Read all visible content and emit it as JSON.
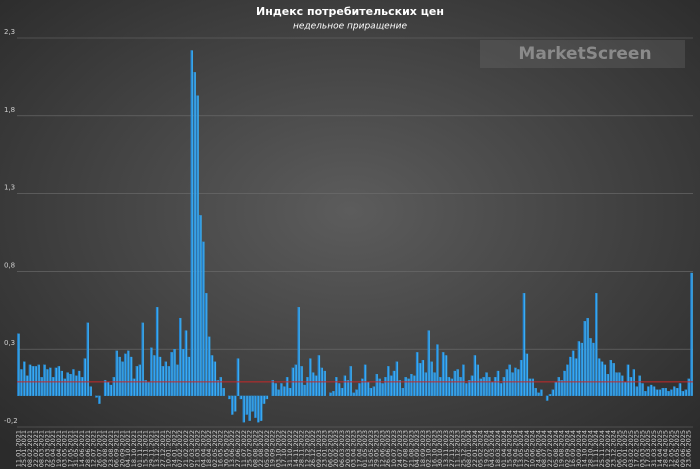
{
  "chart_data": {
    "type": "bar",
    "title": "Индекс потребительских цен",
    "subtitle": "недельное приращение",
    "annotation": "MarketScreen",
    "color": "#2aa6f0",
    "reference_line": {
      "value": 0.09,
      "color": "#c62828"
    },
    "grid": true,
    "ylim": [
      -0.2,
      2.3
    ],
    "yticks": [
      {
        "value": -0.2,
        "label": "-0,2"
      },
      {
        "value": 0.3,
        "label": "0,3"
      },
      {
        "value": 0.8,
        "label": "0,8"
      },
      {
        "value": 1.3,
        "label": "1,3"
      },
      {
        "value": 1.8,
        "label": "1,8"
      },
      {
        "value": 2.3,
        "label": "2,3"
      }
    ],
    "categories": [
      "11.01.2021",
      null,
      "25.01.2021",
      null,
      "08.02.2021",
      null,
      "22.02.2021",
      null,
      "08.03.2021",
      null,
      "22.03.2021",
      null,
      "05.04.2021",
      null,
      "19.04.2021",
      null,
      "03.05.2021",
      null,
      "17.05.2021",
      null,
      "31.05.2021",
      null,
      "14.06.2021",
      null,
      "28.06.2021",
      null,
      "12.07.2021",
      null,
      "26.07.2021",
      null,
      "09.08.2021",
      null,
      "23.08.2021",
      null,
      "06.09.2021",
      null,
      "20.09.2021",
      null,
      "04.10.2021",
      null,
      "18.10.2021",
      null,
      "01.11.2021",
      null,
      "15.11.2021",
      null,
      "29.11.2021",
      null,
      "13.12.2021",
      null,
      "27.12.2021",
      null,
      "10.01.2022",
      null,
      "24.01.2022",
      null,
      "07.02.2022",
      null,
      "21.02.2022",
      null,
      "07.03.2022",
      null,
      "21.03.2022",
      null,
      "04.04.2022",
      null,
      "18.04.2022",
      null,
      "02.05.2022",
      null,
      "16.05.2022",
      null,
      "30.05.2022",
      null,
      "13.06.2022",
      null,
      "27.06.2022",
      null,
      "11.07.2022",
      null,
      "25.07.2022",
      null,
      "08.08.2022",
      null,
      "22.08.2022",
      null,
      "05.09.2022",
      null,
      "19.09.2022",
      null,
      "03.10.2022",
      null,
      "17.10.2022",
      null,
      "31.10.2022",
      null,
      "14.11.2022",
      null,
      "28.11.2022",
      null,
      "12.12.2022",
      null,
      "26.12.2022",
      null,
      "09.01.2023",
      null,
      "23.01.2023",
      null,
      "06.02.2023",
      null,
      "20.02.2023",
      null,
      "06.03.2023",
      null,
      "20.03.2023",
      null,
      "03.04.2023",
      null,
      "17.04.2023",
      null,
      "01.05.2023",
      null,
      "15.05.2023",
      null,
      "29.05.2023",
      null,
      "12.06.2023",
      null,
      "26.06.2023",
      null,
      "10.07.2023",
      null,
      "24.07.2023",
      null,
      "07.08.2023",
      null,
      "21.08.2023",
      null,
      "04.09.2023",
      null,
      "18.09.2023",
      null,
      "02.10.2023",
      null,
      "16.10.2023",
      null,
      "30.10.2023",
      null,
      "13.11.2023",
      null,
      "27.11.2023",
      null,
      "11.12.2023",
      null,
      "25.12.2023",
      null,
      "08.01.2024",
      null,
      "22.01.2024",
      null,
      "05.02.2024",
      null,
      "19.02.2024",
      null,
      "04.03.2024",
      null,
      "18.03.2024",
      null,
      "01.04.2024",
      null,
      "15.04.2024",
      null,
      "29.04.2024",
      null,
      "13.05.2024",
      null,
      "27.05.2024",
      null,
      "10.06.2024",
      null,
      "24.06.2024",
      null,
      "08.07.2024",
      null,
      "22.07.2024",
      null,
      "05.08.2024",
      null,
      "19.08.2024",
      null,
      "02.09.2024",
      null,
      "16.09.2024",
      null,
      "30.09.2024",
      null,
      "14.10.2024",
      null,
      "28.10.2024",
      null,
      "11.11.2024",
      null,
      "25.11.2024",
      null,
      "09.12.2024",
      null,
      "23.12.2024",
      null,
      "06.01.2025",
      null,
      "20.01.2025",
      null,
      "03.02.2025",
      null,
      "17.02.2025",
      null,
      "03.03.2025",
      null,
      "17.03.2025",
      null,
      "31.03.2025",
      null,
      "14.04.2025",
      null,
      "28.04.2025",
      null,
      "12.05.2025",
      null,
      "26.05.2025",
      null,
      "09.06.2025",
      null,
      "23.06.2025",
      null
    ],
    "values": [
      0.4,
      0.17,
      0.22,
      0.13,
      0.2,
      0.19,
      0.19,
      0.2,
      0.12,
      0.2,
      0.17,
      0.18,
      0.12,
      0.18,
      0.19,
      0.16,
      0.11,
      0.15,
      0.14,
      0.17,
      0.13,
      0.16,
      0.12,
      0.24,
      0.47,
      0.06,
      0.0,
      -0.01,
      -0.05,
      0.0,
      0.1,
      0.09,
      0.07,
      0.12,
      0.29,
      0.25,
      0.22,
      0.27,
      0.29,
      0.25,
      0.11,
      0.19,
      0.2,
      0.47,
      0.1,
      0.09,
      0.31,
      0.26,
      0.57,
      0.25,
      0.19,
      0.22,
      0.19,
      0.28,
      0.3,
      0.2,
      0.5,
      0.3,
      0.42,
      0.25,
      2.22,
      2.08,
      1.93,
      1.16,
      0.99,
      0.66,
      0.38,
      0.26,
      0.22,
      0.1,
      0.12,
      0.05,
      0.0,
      -0.02,
      -0.12,
      -0.1,
      0.24,
      -0.02,
      -0.17,
      -0.12,
      -0.16,
      -0.1,
      -0.14,
      -0.17,
      -0.16,
      -0.05,
      -0.02,
      0.0,
      0.1,
      0.08,
      0.04,
      0.08,
      0.06,
      0.12,
      0.05,
      0.18,
      0.2,
      0.57,
      0.19,
      0.07,
      0.12,
      0.24,
      0.15,
      0.13,
      0.26,
      0.18,
      0.16,
      0.0,
      0.02,
      0.03,
      0.12,
      0.08,
      0.05,
      0.13,
      0.1,
      0.19,
      0.02,
      0.04,
      0.08,
      0.11,
      0.2,
      0.09,
      0.05,
      0.06,
      0.14,
      0.11,
      0.08,
      0.12,
      0.19,
      0.13,
      0.16,
      0.22,
      0.1,
      0.05,
      0.12,
      0.11,
      0.14,
      0.13,
      0.28,
      0.21,
      0.23,
      0.15,
      0.42,
      0.22,
      0.15,
      0.33,
      0.12,
      0.28,
      0.26,
      0.12,
      0.11,
      0.16,
      0.17,
      0.12,
      0.2,
      0.08,
      0.1,
      0.13,
      0.26,
      0.2,
      0.11,
      0.12,
      0.15,
      0.12,
      0.09,
      0.12,
      0.16,
      0.08,
      0.12,
      0.17,
      0.2,
      0.15,
      0.18,
      0.17,
      0.23,
      0.66,
      0.27,
      0.11,
      0.11,
      0.05,
      0.02,
      0.04,
      0.0,
      -0.03,
      0.01,
      0.04,
      0.09,
      0.12,
      0.1,
      0.16,
      0.2,
      0.25,
      0.29,
      0.24,
      0.35,
      0.34,
      0.48,
      0.5,
      0.37,
      0.34,
      0.66,
      0.24,
      0.22,
      0.2,
      0.14,
      0.23,
      0.21,
      0.15,
      0.15,
      0.13,
      0.09,
      0.2,
      0.12,
      0.17,
      0.06,
      0.13,
      0.08,
      0.03,
      0.06,
      0.07,
      0.06,
      0.04,
      0.04,
      0.05,
      0.05,
      0.03,
      0.04,
      0.06,
      0.05,
      0.08,
      0.03,
      0.04,
      0.11,
      0.79
    ]
  }
}
